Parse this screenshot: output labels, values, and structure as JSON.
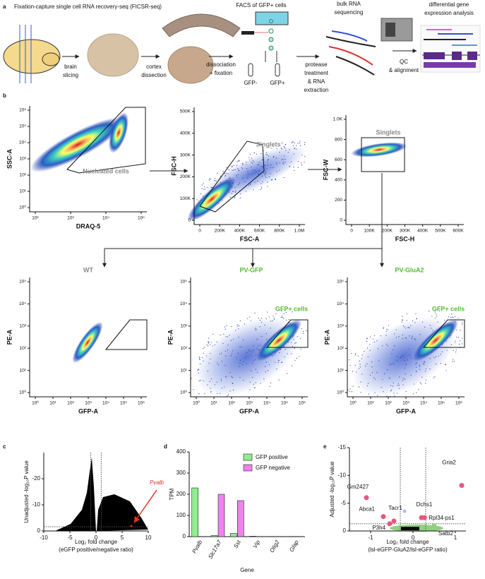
{
  "panel_labels": [
    "a",
    "b",
    "c",
    "d",
    "e"
  ],
  "schematic": {
    "title": "Fixation-capture single cell RNA recovery-seq (FICSR-seq)",
    "facs_title": "FACS of GFP+ cells",
    "seq_title": [
      "bulk RNA",
      "sequencing"
    ],
    "analysis_title": [
      "differential gene",
      "expression analysis"
    ],
    "steps": [
      [
        "brain",
        "slicing"
      ],
      [
        "cortex",
        "dissection"
      ],
      [
        "dissociation",
        "+ fixation"
      ],
      [
        "protease",
        "treatment",
        "& RNA",
        "extraction"
      ],
      [
        "QC",
        "& alignment"
      ]
    ],
    "gates": [
      "GFP-",
      "GFP+"
    ]
  },
  "flow_plots": [
    {
      "y_label": "SSC-A",
      "x_label": "DRAQ-5",
      "yticks": [
        "10⁶",
        "10⁵",
        "10⁴",
        "10³",
        "10²",
        "10¹",
        "10⁰"
      ],
      "xticks": [
        "10²",
        "10³",
        "10⁴",
        "10⁵"
      ],
      "gate_label": "Nucleated cells"
    },
    {
      "y_label": "FSC-H",
      "x_label": "FSC-A",
      "yticks": [
        "500K",
        "400K",
        "300K",
        "200K",
        "100K",
        "0"
      ],
      "xticks": [
        "0",
        "200K",
        "400K",
        "600K",
        "800K",
        "1.0M"
      ],
      "gate_label": "Singlets"
    },
    {
      "y_label": "FSC-W",
      "x_label": "FSC-H",
      "yticks": [
        "1.0K",
        "800",
        "600",
        "400",
        "200",
        "0"
      ],
      "xticks": [
        "0",
        "100K",
        "200K",
        "300K",
        "400K",
        "500K",
        "600K"
      ],
      "gate_label": "Singlets"
    },
    {
      "title": "WT",
      "y_label": "PE-A",
      "x_label": "GFP-A",
      "yticks": [
        "10⁵",
        "10⁴",
        "10³",
        "10²",
        "10¹",
        "10⁰"
      ],
      "xticks": [
        "10⁰",
        "10¹",
        "10²",
        "10³",
        "10⁴",
        "10⁵",
        "10⁶"
      ]
    },
    {
      "title": "PV-GFP",
      "y_label": "PE-A",
      "x_label": "GFP-A",
      "yticks": [
        "10⁵",
        "10⁴",
        "10³",
        "10²",
        "10¹",
        "10⁰"
      ],
      "xticks": [
        "10⁰",
        "10¹",
        "10²",
        "10³",
        "10⁴",
        "10⁵",
        "10⁶"
      ],
      "gate_label": "GFP+ cells"
    },
    {
      "title": "PV-GluA2",
      "y_label": "PE-A",
      "x_label": "GFP-A",
      "yticks": [
        "10⁵",
        "10⁴",
        "10³",
        "10²",
        "10¹",
        "10⁰"
      ],
      "xticks": [
        "10⁰",
        "10¹",
        "10²",
        "10³",
        "10⁴",
        "10⁵",
        "10⁶"
      ],
      "gate_label": "GFP+ cells"
    }
  ],
  "chart_data": [
    {
      "type": "volcano",
      "y_label": "Unadjusted -log₁₀P value",
      "x_label": "Log₂ fold change",
      "x_label_2": "(eGFP positive/negative ratio)",
      "xlim": [
        -10,
        10
      ],
      "xticks": [
        -10,
        -5,
        0,
        5,
        10
      ],
      "ylim": [
        0,
        -30
      ],
      "yticks": [
        0,
        -10,
        -20
      ],
      "annotation": "Pvalb"
    },
    {
      "type": "bar",
      "y_label": "TPM",
      "x_label": "Gene",
      "categories": [
        "Pvalb",
        "Slc17a7",
        "Sst",
        "Vip",
        "Olig2",
        "Gfap"
      ],
      "ylim": [
        0,
        400
      ],
      "yticks": [
        0,
        100,
        200,
        300,
        400
      ],
      "series": [
        {
          "name": "GFP positive",
          "color": "#90ee90",
          "values": [
            230,
            5,
            15,
            2,
            1,
            1
          ]
        },
        {
          "name": "GFP negative",
          "color": "#ee82ee",
          "values": [
            1,
            200,
            170,
            1,
            1,
            1
          ]
        }
      ]
    },
    {
      "type": "scatter",
      "y_label": "Adjusted -log₁₀P value",
      "x_label": "Log₂ fold change",
      "x_label_2": "(lsl-eGFP-GluA2/lsl-eGFP ratio)",
      "xlim": [
        -1.5,
        1.25
      ],
      "xticks": [
        -1,
        0,
        1
      ],
      "ylim": [
        0,
        -15
      ],
      "yticks": [
        0,
        -5,
        -10,
        -15
      ],
      "labels": [
        "Gria2",
        "Gm2427",
        "Abca1",
        "Tacr1",
        "P3h4",
        "Dchs1",
        "Rpl34-ps1",
        "Satb2"
      ],
      "x": [
        1.15,
        -1.1,
        -0.7,
        -0.45,
        -0.55,
        0.2,
        0.27,
        0.5
      ],
      "y": [
        -8.2,
        -6,
        -2.6,
        -1.8,
        -1.3,
        -2.4,
        -2.4,
        -0.9
      ],
      "colors": [
        "#e8577a",
        "#e8577a",
        "#e8577a",
        "#e8577a",
        "#e8577a",
        "#e8577a",
        "#e8577a",
        "#8fd17f"
      ]
    }
  ]
}
